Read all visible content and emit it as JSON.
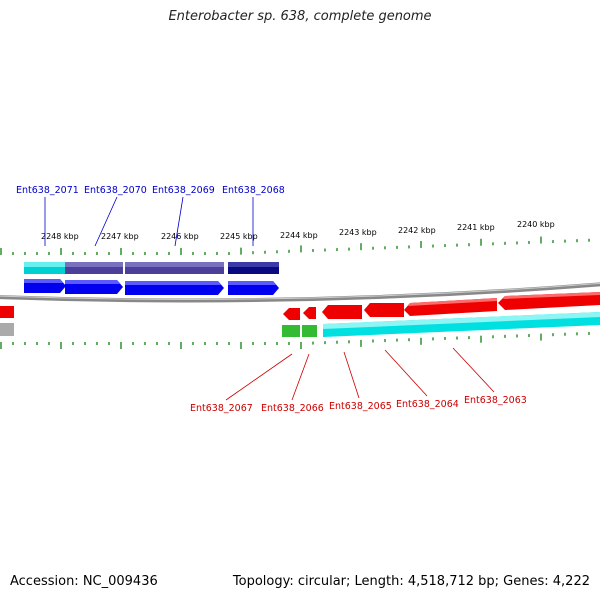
{
  "header": {
    "title": "Enterobacter sp. 638, complete genome"
  },
  "footer": {
    "accession": "Accession: NC_009436",
    "summary": "Topology: circular; Length: 4,518,712 bp; Genes: 4,222"
  },
  "colors": {
    "forward_gene": "#0000ee",
    "reverse_gene": "#ee0000",
    "forward_label": "#0000cc",
    "reverse_label": "#cc0000",
    "tick": "#228822",
    "backbone": "#888888",
    "cog_cyan": "#00e0e0",
    "cog_slate": "#4b3f99",
    "cog_navy": "#0a0a80",
    "cog_green": "#33bb33",
    "cog_gray": "#aaaaaa"
  },
  "scale": {
    "unit": "kbp",
    "labels": [
      "2248 kbp",
      "2247 kbp",
      "2246 kbp",
      "2245 kbp",
      "2244 kbp",
      "2243 kbp",
      "2242 kbp",
      "2241 kbp",
      "2240 kbp"
    ]
  },
  "genes": {
    "forward": [
      {
        "label": "Ent638_2071"
      },
      {
        "label": "Ent638_2070"
      },
      {
        "label": "Ent638_2069"
      },
      {
        "label": "Ent638_2068"
      }
    ],
    "reverse": [
      {
        "label": "Ent638_2067"
      },
      {
        "label": "Ent638_2066"
      },
      {
        "label": "Ent638_2065"
      },
      {
        "label": "Ent638_2064"
      },
      {
        "label": "Ent638_2063"
      }
    ]
  }
}
